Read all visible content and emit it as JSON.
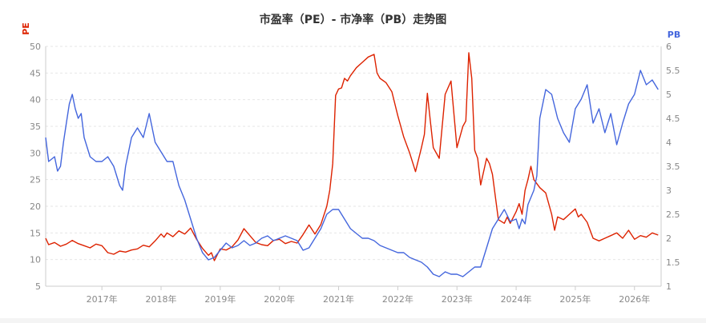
{
  "chart_data": {
    "type": "line",
    "title": "市盈率（PE）- 市净率（PB）走势图",
    "left_axis_label": "PE",
    "right_axis_label": "PB",
    "x_tick_labels": [
      "2017年",
      "2018年",
      "2019年",
      "2020年",
      "2021年",
      "2022年",
      "2023年",
      "2024年",
      "2025年",
      "2026年"
    ],
    "x_tick_positions": [
      2017.0,
      2018.0,
      2019.0,
      2020.0,
      2021.0,
      2022.0,
      2023.0,
      2024.0,
      2025.0,
      2026.0
    ],
    "xlim": [
      2016.05,
      2026.45
    ],
    "ylim_left": [
      5,
      50
    ],
    "ylim_right": [
      1,
      6
    ],
    "left_ticks": [
      5,
      10,
      15,
      20,
      25,
      30,
      35,
      40,
      45,
      50
    ],
    "right_ticks": [
      1,
      1.5,
      2,
      2.5,
      3,
      3.5,
      4,
      4.5,
      5,
      5.5,
      6
    ],
    "grid": true,
    "colors": {
      "pe": "#dd2200",
      "pb": "#4466dd",
      "axis": "#cccccc",
      "grid": "#e6e6e6"
    },
    "series": [
      {
        "name": "PE",
        "axis": "left",
        "x": [
          2016.05,
          2016.1,
          2016.2,
          2016.3,
          2016.4,
          2016.5,
          2016.6,
          2016.7,
          2016.8,
          2016.9,
          2017.0,
          2017.1,
          2017.2,
          2017.3,
          2017.4,
          2017.5,
          2017.6,
          2017.7,
          2017.8,
          2017.9,
          2018.0,
          2018.05,
          2018.1,
          2018.2,
          2018.3,
          2018.4,
          2018.5,
          2018.6,
          2018.7,
          2018.8,
          2018.85,
          2018.9,
          2019.0,
          2019.1,
          2019.2,
          2019.3,
          2019.4,
          2019.5,
          2019.6,
          2019.7,
          2019.8,
          2019.9,
          2020.0,
          2020.1,
          2020.2,
          2020.3,
          2020.4,
          2020.5,
          2020.6,
          2020.7,
          2020.8,
          2020.85,
          2020.9,
          2020.95,
          2021.0,
          2021.05,
          2021.1,
          2021.15,
          2021.2,
          2021.3,
          2021.4,
          2021.5,
          2021.6,
          2021.65,
          2021.7,
          2021.8,
          2021.9,
          2022.0,
          2022.1,
          2022.2,
          2022.3,
          2022.4,
          2022.45,
          2022.5,
          2022.55,
          2022.6,
          2022.7,
          2022.8,
          2022.9,
          2023.0,
          2023.05,
          2023.1,
          2023.15,
          2023.2,
          2023.25,
          2023.3,
          2023.35,
          2023.4,
          2023.5,
          2023.55,
          2023.6,
          2023.7,
          2023.8,
          2023.85,
          2023.9,
          2024.0,
          2024.05,
          2024.1,
          2024.15,
          2024.2,
          2024.25,
          2024.3,
          2024.4,
          2024.5,
          2024.6,
          2024.65,
          2024.7,
          2024.8,
          2024.9,
          2025.0,
          2025.05,
          2025.1,
          2025.2,
          2025.3,
          2025.4,
          2025.5,
          2025.6,
          2025.7,
          2025.8,
          2025.9,
          2026.0,
          2026.1,
          2026.2,
          2026.3,
          2026.4
        ],
        "y": [
          14.0,
          12.8,
          13.2,
          12.5,
          12.9,
          13.6,
          13.0,
          12.6,
          12.2,
          12.9,
          12.6,
          11.3,
          11.0,
          11.6,
          11.4,
          11.8,
          12.0,
          12.7,
          12.4,
          13.5,
          14.8,
          14.2,
          15.0,
          14.3,
          15.4,
          14.8,
          15.9,
          13.8,
          12.1,
          10.8,
          11.3,
          9.8,
          12.0,
          11.8,
          12.4,
          13.7,
          15.8,
          14.5,
          13.2,
          12.8,
          12.6,
          13.6,
          13.8,
          13.0,
          13.4,
          13.1,
          14.7,
          16.5,
          14.8,
          16.6,
          20.0,
          23.0,
          28.0,
          40.8,
          42.0,
          42.2,
          44.0,
          43.5,
          44.5,
          46.0,
          47.0,
          48.0,
          48.5,
          45.0,
          44.0,
          43.2,
          41.5,
          37.0,
          33.0,
          30.0,
          26.5,
          31.0,
          33.5,
          41.2,
          36.0,
          31.0,
          29.0,
          41.0,
          43.5,
          31.0,
          33.0,
          35.0,
          36.0,
          48.8,
          44.0,
          30.5,
          29.0,
          24.0,
          29.0,
          28.0,
          26.0,
          17.5,
          16.8,
          18.0,
          16.8,
          19.0,
          20.5,
          18.5,
          23.0,
          25.0,
          27.5,
          25.0,
          23.5,
          22.5,
          18.5,
          15.5,
          18.0,
          17.5,
          18.5,
          19.5,
          18.0,
          18.5,
          17.0,
          14.0,
          13.5,
          14.0,
          14.5,
          15.0,
          14.0,
          15.5,
          13.8,
          14.5,
          14.2,
          15.0,
          14.6
        ]
      },
      {
        "name": "PB",
        "axis": "right",
        "x": [
          2016.05,
          2016.1,
          2016.2,
          2016.25,
          2016.3,
          2016.35,
          2016.4,
          2016.45,
          2016.5,
          2016.55,
          2016.6,
          2016.65,
          2016.7,
          2016.8,
          2016.9,
          2017.0,
          2017.1,
          2017.2,
          2017.3,
          2017.35,
          2017.4,
          2017.5,
          2017.6,
          2017.7,
          2017.8,
          2017.9,
          2018.0,
          2018.1,
          2018.2,
          2018.3,
          2018.4,
          2018.5,
          2018.6,
          2018.7,
          2018.8,
          2018.9,
          2019.0,
          2019.1,
          2019.2,
          2019.3,
          2019.4,
          2019.5,
          2019.6,
          2019.7,
          2019.8,
          2019.9,
          2020.0,
          2020.1,
          2020.2,
          2020.3,
          2020.4,
          2020.5,
          2020.6,
          2020.7,
          2020.8,
          2020.9,
          2021.0,
          2021.1,
          2021.2,
          2021.3,
          2021.4,
          2021.5,
          2021.6,
          2021.7,
          2021.8,
          2021.9,
          2022.0,
          2022.1,
          2022.2,
          2022.3,
          2022.4,
          2022.5,
          2022.6,
          2022.7,
          2022.8,
          2022.9,
          2023.0,
          2023.1,
          2023.2,
          2023.3,
          2023.4,
          2023.5,
          2023.6,
          2023.7,
          2023.8,
          2023.9,
          2024.0,
          2024.05,
          2024.1,
          2024.15,
          2024.2,
          2024.3,
          2024.35,
          2024.4,
          2024.5,
          2024.6,
          2024.7,
          2024.8,
          2024.9,
          2025.0,
          2025.1,
          2025.2,
          2025.3,
          2025.4,
          2025.5,
          2025.6,
          2025.7,
          2025.8,
          2025.9,
          2026.0,
          2026.1,
          2026.2,
          2026.3,
          2026.4
        ],
        "y": [
          4.1,
          3.6,
          3.7,
          3.4,
          3.5,
          4.0,
          4.4,
          4.8,
          5.0,
          4.7,
          4.5,
          4.6,
          4.1,
          3.7,
          3.6,
          3.6,
          3.7,
          3.5,
          3.1,
          3.0,
          3.5,
          4.1,
          4.3,
          4.1,
          4.6,
          4.0,
          3.8,
          3.6,
          3.6,
          3.1,
          2.8,
          2.4,
          2.0,
          1.7,
          1.55,
          1.6,
          1.75,
          1.9,
          1.8,
          1.85,
          1.95,
          1.85,
          1.9,
          2.0,
          2.05,
          1.95,
          2.0,
          2.05,
          2.0,
          1.95,
          1.75,
          1.8,
          2.0,
          2.2,
          2.5,
          2.6,
          2.6,
          2.4,
          2.2,
          2.1,
          2.0,
          2.0,
          1.95,
          1.85,
          1.8,
          1.75,
          1.7,
          1.7,
          1.6,
          1.55,
          1.5,
          1.4,
          1.25,
          1.2,
          1.3,
          1.25,
          1.25,
          1.2,
          1.3,
          1.4,
          1.4,
          1.8,
          2.2,
          2.4,
          2.6,
          2.35,
          2.4,
          2.2,
          2.4,
          2.3,
          2.7,
          3.0,
          3.3,
          4.5,
          5.1,
          5.0,
          4.5,
          4.2,
          4.0,
          4.7,
          4.9,
          5.2,
          4.4,
          4.7,
          4.2,
          4.6,
          3.95,
          4.4,
          4.8,
          5.0,
          5.5,
          5.2,
          5.3,
          5.1
        ]
      }
    ]
  }
}
